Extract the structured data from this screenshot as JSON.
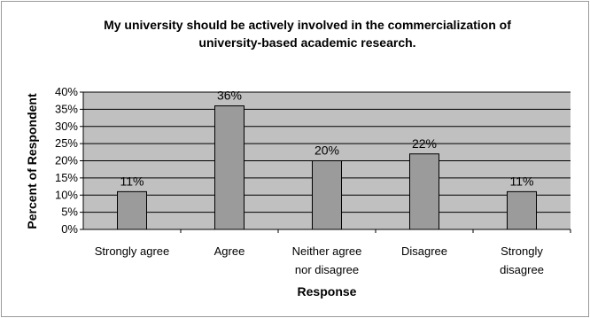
{
  "chart_data": {
    "type": "bar",
    "title": "My university should be actively involved in the commercialization of university-based academic research.",
    "title_lines": [
      "My university should be actively involved in the commercialization of",
      "university-based academic research."
    ],
    "xlabel": "Response",
    "ylabel": "Percent of Respondent",
    "categories": [
      "Strongly agree",
      "Agree",
      "Neither agree nor disagree",
      "Disagree",
      "Strongly disagree"
    ],
    "category_lines": [
      [
        "Strongly agree"
      ],
      [
        "Agree"
      ],
      [
        "Neither agree",
        "nor disagree"
      ],
      [
        "Disagree"
      ],
      [
        "Strongly",
        "disagree"
      ]
    ],
    "values": [
      11,
      36,
      20,
      22,
      11
    ],
    "data_labels": [
      "11%",
      "36%",
      "20%",
      "22%",
      "11%"
    ],
    "ylim": [
      0,
      40
    ],
    "yticks": [
      0,
      5,
      10,
      15,
      20,
      25,
      30,
      35,
      40
    ],
    "ytick_labels": [
      "0%",
      "5%",
      "10%",
      "15%",
      "20%",
      "25%",
      "30%",
      "35%",
      "40%"
    ],
    "grid": true,
    "legend": "none",
    "colors": {
      "plot_background": "#c0c0c0",
      "bar_fill": "#9b9b9b",
      "bar_stroke": "#000000",
      "gridline": "#000000"
    }
  }
}
